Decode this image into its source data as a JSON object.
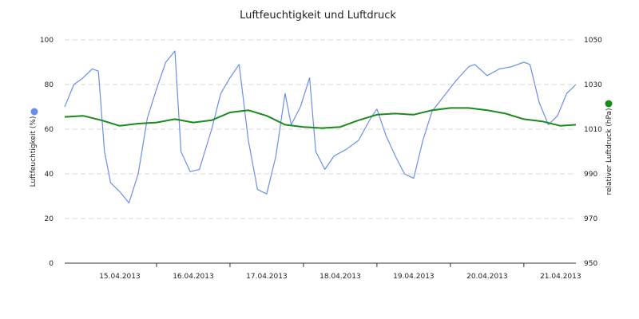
{
  "chart_data": {
    "type": "line",
    "title": "Luftfeuchtigkeit und Luftdruck",
    "x_range": [
      "14.04.2013 18:00",
      "21.04.2013 17:00"
    ],
    "x_ticks": [
      "15.04.2013",
      "16.04.2013",
      "17.04.2013",
      "18.04.2013",
      "19.04.2013",
      "20.04.2013",
      "21.04.2013"
    ],
    "y_left": {
      "label": "Luftfeuchtigkeit (%)",
      "range": [
        0,
        100
      ],
      "ticks": [
        "0",
        "20",
        "40",
        "60",
        "80",
        "100"
      ],
      "color": "#6b8ee8"
    },
    "y_right": {
      "label": "relativer Luftdruck (hPa)",
      "range": [
        950,
        1050
      ],
      "ticks": [
        "950",
        "970",
        "990",
        "1010",
        "1030",
        "1050"
      ],
      "color": "#1a8a1a"
    },
    "grid": true,
    "series": [
      {
        "name": "Luftfeuchtigkeit (%)",
        "axis": "left",
        "color": "#6b8ee8",
        "points": [
          [
            "14.04.2013 18:00",
            70
          ],
          [
            "14.04.2013 21:00",
            80
          ],
          [
            "15.04.2013 00:00",
            83
          ],
          [
            "15.04.2013 03:00",
            87
          ],
          [
            "15.04.2013 05:00",
            86
          ],
          [
            "15.04.2013 07:00",
            50
          ],
          [
            "15.04.2013 09:00",
            36
          ],
          [
            "15.04.2013 12:00",
            32
          ],
          [
            "15.04.2013 15:00",
            27
          ],
          [
            "15.04.2013 18:00",
            40
          ],
          [
            "15.04.2013 21:00",
            65
          ],
          [
            "16.04.2013 00:00",
            78
          ],
          [
            "16.04.2013 03:00",
            90
          ],
          [
            "16.04.2013 06:00",
            95
          ],
          [
            "16.04.2013 08:00",
            50
          ],
          [
            "16.04.2013 11:00",
            41
          ],
          [
            "16.04.2013 14:00",
            42
          ],
          [
            "16.04.2013 18:00",
            60
          ],
          [
            "16.04.2013 21:00",
            76
          ],
          [
            "17.04.2013 00:00",
            83
          ],
          [
            "17.04.2013 03:00",
            89
          ],
          [
            "17.04.2013 06:00",
            55
          ],
          [
            "17.04.2013 09:00",
            33
          ],
          [
            "17.04.2013 12:00",
            31
          ],
          [
            "17.04.2013 15:00",
            48
          ],
          [
            "17.04.2013 18:00",
            76
          ],
          [
            "17.04.2013 20:00",
            62
          ],
          [
            "17.04.2013 23:00",
            70
          ],
          [
            "18.04.2013 02:00",
            83
          ],
          [
            "18.04.2013 04:00",
            50
          ],
          [
            "18.04.2013 07:00",
            42
          ],
          [
            "18.04.2013 10:00",
            48
          ],
          [
            "18.04.2013 14:00",
            51
          ],
          [
            "18.04.2013 18:00",
            55
          ],
          [
            "18.04.2013 22:00",
            65
          ],
          [
            "19.04.2013 00:00",
            69
          ],
          [
            "19.04.2013 03:00",
            57
          ],
          [
            "19.04.2013 06:00",
            48
          ],
          [
            "19.04.2013 09:00",
            40
          ],
          [
            "19.04.2013 12:00",
            38
          ],
          [
            "19.04.2013 15:00",
            55
          ],
          [
            "19.04.2013 18:00",
            68
          ],
          [
            "19.04.2013 22:00",
            75
          ],
          [
            "20.04.2013 02:00",
            82
          ],
          [
            "20.04.2013 06:00",
            88
          ],
          [
            "20.04.2013 08:00",
            89
          ],
          [
            "20.04.2013 12:00",
            84
          ],
          [
            "20.04.2013 16:00",
            87
          ],
          [
            "20.04.2013 20:00",
            88
          ],
          [
            "21.04.2013 00:00",
            90
          ],
          [
            "21.04.2013 02:00",
            89
          ],
          [
            "21.04.2013 05:00",
            72
          ],
          [
            "21.04.2013 08:00",
            62
          ],
          [
            "21.04.2013 11:00",
            66
          ],
          [
            "21.04.2013 14:00",
            76
          ],
          [
            "21.04.2013 17:00",
            80
          ]
        ]
      },
      {
        "name": "relativer Luftdruck (hPa)",
        "axis": "right",
        "color": "#1a8a1a",
        "points": [
          [
            "14.04.2013 18:00",
            1015.5
          ],
          [
            "15.04.2013 00:00",
            1016
          ],
          [
            "15.04.2013 06:00",
            1014
          ],
          [
            "15.04.2013 12:00",
            1011.5
          ],
          [
            "15.04.2013 18:00",
            1012.5
          ],
          [
            "16.04.2013 00:00",
            1013
          ],
          [
            "16.04.2013 06:00",
            1014.5
          ],
          [
            "16.04.2013 12:00",
            1013
          ],
          [
            "16.04.2013 18:00",
            1014
          ],
          [
            "17.04.2013 00:00",
            1017.5
          ],
          [
            "17.04.2013 06:00",
            1018.5
          ],
          [
            "17.04.2013 12:00",
            1016
          ],
          [
            "17.04.2013 18:00",
            1012
          ],
          [
            "18.04.2013 00:00",
            1011
          ],
          [
            "18.04.2013 06:00",
            1010.5
          ],
          [
            "18.04.2013 12:00",
            1011
          ],
          [
            "18.04.2013 18:00",
            1014
          ],
          [
            "19.04.2013 00:00",
            1016.5
          ],
          [
            "19.04.2013 06:00",
            1017
          ],
          [
            "19.04.2013 12:00",
            1016.5
          ],
          [
            "19.04.2013 18:00",
            1018.5
          ],
          [
            "20.04.2013 00:00",
            1019.5
          ],
          [
            "20.04.2013 06:00",
            1019.5
          ],
          [
            "20.04.2013 12:00",
            1018.5
          ],
          [
            "20.04.2013 18:00",
            1017
          ],
          [
            "21.04.2013 00:00",
            1014.5
          ],
          [
            "21.04.2013 06:00",
            1013.5
          ],
          [
            "21.04.2013 12:00",
            1011.5
          ],
          [
            "21.04.2013 17:00",
            1012
          ]
        ]
      }
    ]
  }
}
